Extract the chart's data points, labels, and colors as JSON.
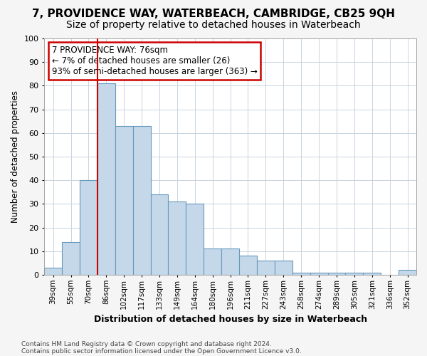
{
  "title1": "7, PROVIDENCE WAY, WATERBEACH, CAMBRIDGE, CB25 9QH",
  "title2": "Size of property relative to detached houses in Waterbeach",
  "xlabel": "Distribution of detached houses by size in Waterbeach",
  "ylabel": "Number of detached properties",
  "categories": [
    "39sqm",
    "55sqm",
    "70sqm",
    "86sqm",
    "102sqm",
    "117sqm",
    "133sqm",
    "149sqm",
    "164sqm",
    "180sqm",
    "196sqm",
    "211sqm",
    "227sqm",
    "243sqm",
    "258sqm",
    "274sqm",
    "289sqm",
    "305sqm",
    "321sqm",
    "336sqm",
    "352sqm"
  ],
  "values": [
    3,
    14,
    40,
    81,
    63,
    63,
    34,
    31,
    30,
    11,
    11,
    8,
    6,
    6,
    1,
    1,
    1,
    1,
    1,
    0,
    2
  ],
  "bar_color": "#c5d8ea",
  "bar_edge_color": "#6699bb",
  "vline_color": "#cc0000",
  "vline_xindex": 2.5,
  "annotation_text": "7 PROVIDENCE WAY: 76sqm\n← 7% of detached houses are smaller (26)\n93% of semi-detached houses are larger (363) →",
  "annotation_box_facecolor": "#ffffff",
  "annotation_box_edgecolor": "#cc0000",
  "footer1": "Contains HM Land Registry data © Crown copyright and database right 2024.",
  "footer2": "Contains public sector information licensed under the Open Government Licence v3.0.",
  "background_color": "#f5f5f5",
  "plot_bg_color": "#ffffff",
  "ylim": [
    0,
    100
  ],
  "yticks": [
    0,
    10,
    20,
    30,
    40,
    50,
    60,
    70,
    80,
    90,
    100
  ],
  "grid_color": "#c8d4e0",
  "title1_fontsize": 11,
  "title2_fontsize": 10
}
